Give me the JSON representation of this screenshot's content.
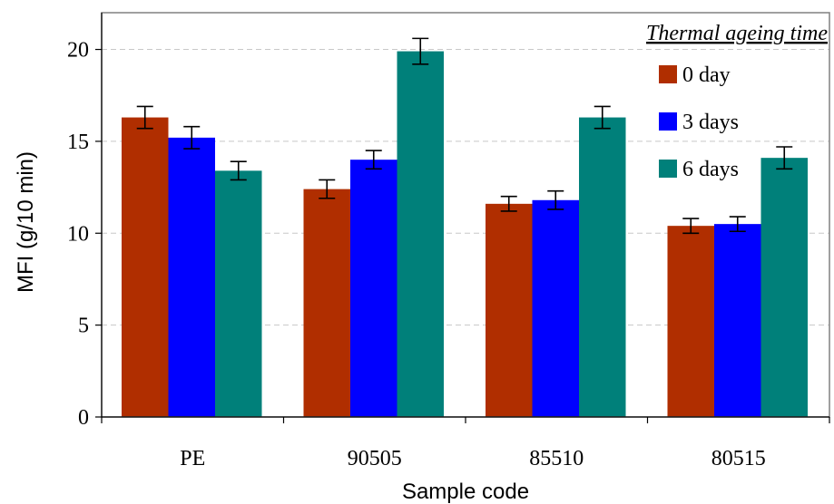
{
  "chart_data": {
    "type": "bar",
    "title": "",
    "xlabel": "Sample code",
    "ylabel": "MFI (g/10 min)",
    "categories": [
      "PE",
      "90505",
      "85510",
      "80515"
    ],
    "ylim": [
      0,
      22
    ],
    "yticks": [
      0,
      5,
      10,
      15,
      20
    ],
    "grid": true,
    "legend_title": "Thermal ageing time",
    "legend_position": "top-right",
    "series": [
      {
        "name": "0 day",
        "color": "#B02E00",
        "values": [
          16.3,
          12.4,
          11.6,
          10.4
        ],
        "errors": [
          0.6,
          0.5,
          0.4,
          0.4
        ]
      },
      {
        "name": "3 days",
        "color": "#0000FF",
        "values": [
          15.2,
          14.0,
          11.8,
          10.5
        ],
        "errors": [
          0.6,
          0.5,
          0.5,
          0.4
        ]
      },
      {
        "name": "6 days",
        "color": "#00807A",
        "values": [
          13.4,
          19.9,
          16.3,
          14.1
        ],
        "errors": [
          0.5,
          0.7,
          0.6,
          0.6
        ]
      }
    ]
  }
}
